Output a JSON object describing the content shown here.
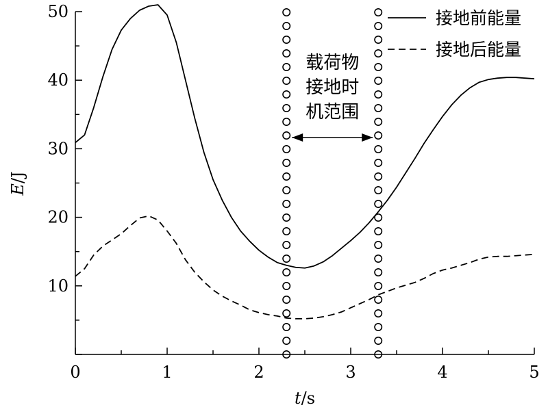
{
  "chart_data": {
    "type": "line",
    "xlabel_var": "t",
    "xlabel_unit": "/s",
    "ylabel_var": "E",
    "ylabel_unit": "/J",
    "xlim": [
      0,
      5
    ],
    "ylim": [
      0,
      50
    ],
    "xticks": [
      0,
      1,
      2,
      3,
      4,
      5
    ],
    "yticks": [
      10,
      20,
      30,
      40,
      50
    ],
    "grid": false,
    "legend_position": "top-right",
    "series": [
      {
        "name": "接地前能量",
        "style": "solid",
        "points": [
          [
            0.0,
            30.9
          ],
          [
            0.1,
            32.0
          ],
          [
            0.2,
            36.0
          ],
          [
            0.3,
            40.5
          ],
          [
            0.4,
            44.5
          ],
          [
            0.5,
            47.3
          ],
          [
            0.6,
            49.0
          ],
          [
            0.7,
            50.2
          ],
          [
            0.8,
            50.8
          ],
          [
            0.9,
            51.0
          ],
          [
            1.0,
            49.5
          ],
          [
            1.1,
            45.5
          ],
          [
            1.2,
            40.0
          ],
          [
            1.3,
            34.5
          ],
          [
            1.4,
            29.5
          ],
          [
            1.5,
            25.5
          ],
          [
            1.6,
            22.5
          ],
          [
            1.7,
            20.0
          ],
          [
            1.8,
            18.0
          ],
          [
            1.9,
            16.5
          ],
          [
            2.0,
            15.2
          ],
          [
            2.1,
            14.2
          ],
          [
            2.2,
            13.4
          ],
          [
            2.3,
            13.0
          ],
          [
            2.4,
            12.7
          ],
          [
            2.5,
            12.6
          ],
          [
            2.6,
            12.9
          ],
          [
            2.7,
            13.5
          ],
          [
            2.8,
            14.4
          ],
          [
            2.9,
            15.5
          ],
          [
            3.0,
            16.6
          ],
          [
            3.1,
            17.8
          ],
          [
            3.2,
            19.2
          ],
          [
            3.3,
            20.8
          ],
          [
            3.4,
            22.5
          ],
          [
            3.5,
            24.4
          ],
          [
            3.6,
            26.5
          ],
          [
            3.7,
            28.6
          ],
          [
            3.8,
            30.8
          ],
          [
            3.9,
            32.8
          ],
          [
            4.0,
            34.7
          ],
          [
            4.1,
            36.4
          ],
          [
            4.2,
            37.8
          ],
          [
            4.3,
            38.9
          ],
          [
            4.4,
            39.7
          ],
          [
            4.5,
            40.1
          ],
          [
            4.6,
            40.3
          ],
          [
            4.7,
            40.4
          ],
          [
            4.8,
            40.4
          ],
          [
            4.9,
            40.3
          ],
          [
            5.0,
            40.2
          ]
        ]
      },
      {
        "name": "接地后能量",
        "style": "dashed",
        "points": [
          [
            0.0,
            11.4
          ],
          [
            0.1,
            12.5
          ],
          [
            0.2,
            14.5
          ],
          [
            0.3,
            15.8
          ],
          [
            0.4,
            16.7
          ],
          [
            0.5,
            17.6
          ],
          [
            0.6,
            18.8
          ],
          [
            0.7,
            19.9
          ],
          [
            0.8,
            20.2
          ],
          [
            0.9,
            19.6
          ],
          [
            1.0,
            18.0
          ],
          [
            1.1,
            16.2
          ],
          [
            1.2,
            13.8
          ],
          [
            1.3,
            12.0
          ],
          [
            1.4,
            10.6
          ],
          [
            1.5,
            9.4
          ],
          [
            1.6,
            8.5
          ],
          [
            1.7,
            7.8
          ],
          [
            1.8,
            7.2
          ],
          [
            1.9,
            6.5
          ],
          [
            2.0,
            6.1
          ],
          [
            2.1,
            5.8
          ],
          [
            2.2,
            5.6
          ],
          [
            2.3,
            5.3
          ],
          [
            2.4,
            5.2
          ],
          [
            2.5,
            5.2
          ],
          [
            2.6,
            5.3
          ],
          [
            2.7,
            5.5
          ],
          [
            2.8,
            5.8
          ],
          [
            2.9,
            6.2
          ],
          [
            3.0,
            6.8
          ],
          [
            3.1,
            7.4
          ],
          [
            3.2,
            8.0
          ],
          [
            3.3,
            8.7
          ],
          [
            3.4,
            9.2
          ],
          [
            3.5,
            9.7
          ],
          [
            3.6,
            10.1
          ],
          [
            3.7,
            10.5
          ],
          [
            3.8,
            11.1
          ],
          [
            3.9,
            11.8
          ],
          [
            4.0,
            12.3
          ],
          [
            4.1,
            12.6
          ],
          [
            4.2,
            13.0
          ],
          [
            4.3,
            13.4
          ],
          [
            4.4,
            13.9
          ],
          [
            4.5,
            14.2
          ],
          [
            4.6,
            14.3
          ],
          [
            4.7,
            14.3
          ],
          [
            4.8,
            14.4
          ],
          [
            4.9,
            14.5
          ],
          [
            5.0,
            14.6
          ]
        ]
      }
    ],
    "range_markers": {
      "x": [
        2.3,
        3.3
      ],
      "style": "circles",
      "label_lines": [
        "载荷物",
        "接地时",
        "机范围"
      ]
    }
  }
}
